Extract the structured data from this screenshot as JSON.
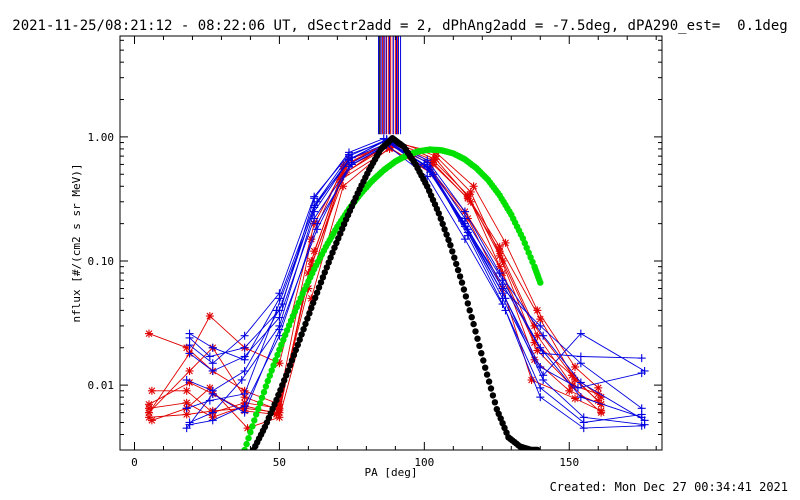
{
  "header": {
    "title": "2021-11-25/08:21:12 - 08:22:06 UT, dSectr2add = 2, dPhAng2add = -7.5deg, dPA290_est=  0.1deg"
  },
  "footer": {
    "created": "Created: Mon Dec 27 00:34:41 2021"
  },
  "chart_data": {
    "type": "line",
    "xlabel": "PA [deg]",
    "ylabel": "nflux [#/(cm2 s sr MeV)]",
    "xlim": [
      -5,
      182
    ],
    "ylim": [
      0.003,
      6.5
    ],
    "y_log": true,
    "x_ticks": [
      0,
      50,
      100,
      150
    ],
    "x_tick_labels": [
      "0",
      "50",
      "100",
      "150"
    ],
    "y_ticks": [
      0.01,
      0.1,
      1.0
    ],
    "y_tick_labels": [
      "0.01",
      "0.10",
      "1.00"
    ],
    "colors": {
      "red": "#e00000",
      "blue": "#0000e0",
      "green": "#00e000",
      "black": "#000000"
    },
    "series": [
      {
        "color": "red",
        "marker": "*",
        "x": [
          5,
          18,
          27,
          38,
          50,
          61,
          72,
          88,
          103,
          115,
          126,
          138,
          151,
          161
        ],
        "y": [
          0.0055,
          0.0058,
          0.0062,
          0.0065,
          0.006,
          0.1,
          0.55,
          0.85,
          0.6,
          0.32,
          0.12,
          0.03,
          0.012,
          0.008
        ]
      },
      {
        "color": "red",
        "marker": "*",
        "x": [
          5,
          18,
          27,
          38,
          50,
          61,
          72,
          88,
          103,
          115,
          126,
          138,
          151,
          161
        ],
        "y": [
          0.026,
          0.02,
          0.013,
          0.009,
          0.007,
          0.09,
          0.5,
          0.9,
          0.65,
          0.34,
          0.11,
          0.022,
          0.012,
          0.007
        ]
      },
      {
        "color": "red",
        "marker": "*",
        "x": [
          6,
          18,
          27,
          38,
          50,
          62,
          73,
          89,
          104,
          116,
          127,
          139,
          151,
          160
        ],
        "y": [
          0.009,
          0.009,
          0.006,
          0.0072,
          0.0065,
          0.12,
          0.6,
          0.95,
          0.7,
          0.36,
          0.1,
          0.025,
          0.01,
          0.0085
        ]
      },
      {
        "color": "red",
        "marker": "*",
        "x": [
          5,
          19,
          27,
          38,
          49,
          60,
          71,
          88,
          102,
          114,
          126,
          139,
          151,
          161
        ],
        "y": [
          0.007,
          0.0105,
          0.0085,
          0.0062,
          0.0058,
          0.06,
          0.45,
          0.8,
          0.55,
          0.25,
          0.09,
          0.019,
          0.0098,
          0.006
        ]
      },
      {
        "color": "red",
        "marker": "*",
        "x": [
          5,
          19,
          26,
          38,
          50,
          62,
          74,
          90,
          104,
          117,
          128,
          139,
          152,
          160
        ],
        "y": [
          0.006,
          0.018,
          0.036,
          0.02,
          0.015,
          0.2,
          0.66,
          0.9,
          0.75,
          0.4,
          0.14,
          0.04,
          0.014,
          0.0095
        ]
      },
      {
        "color": "red",
        "marker": "*",
        "x": [
          6,
          18,
          26,
          39,
          50,
          61,
          72,
          88,
          103,
          115,
          127,
          137,
          152,
          161
        ],
        "y": [
          0.0052,
          0.0065,
          0.0095,
          0.0045,
          0.0055,
          0.05,
          0.4,
          0.82,
          0.5,
          0.22,
          0.06,
          0.011,
          0.0078,
          0.0062
        ]
      },
      {
        "color": "red",
        "marker": "*",
        "x": [
          5,
          19,
          27,
          38,
          50,
          60,
          73,
          89,
          103,
          116,
          127,
          138,
          150,
          161
        ],
        "y": [
          0.006,
          0.013,
          0.02,
          0.008,
          0.0063,
          0.08,
          0.52,
          0.88,
          0.62,
          0.3,
          0.08,
          0.016,
          0.009,
          0.007
        ]
      },
      {
        "color": "red",
        "marker": "*",
        "x": [
          5,
          18,
          27,
          38,
          49,
          61,
          72,
          89,
          104,
          115,
          126,
          140,
          152,
          160
        ],
        "y": [
          0.0065,
          0.0072,
          0.0055,
          0.0068,
          0.0059,
          0.15,
          0.58,
          0.92,
          0.66,
          0.33,
          0.13,
          0.034,
          0.011,
          0.0075
        ]
      },
      {
        "color": "blue",
        "marker": "+",
        "x": [
          19,
          27,
          38,
          50,
          62,
          74,
          87,
          101,
          114,
          127,
          140,
          154,
          175
        ],
        "y": [
          0.026,
          0.02,
          0.016,
          0.05,
          0.28,
          0.7,
          0.95,
          0.62,
          0.22,
          0.07,
          0.02,
          0.008,
          0.0055
        ]
      },
      {
        "color": "blue",
        "marker": "+",
        "x": [
          19,
          27,
          38,
          50,
          62,
          74,
          87,
          101,
          114,
          127,
          140,
          154,
          175
        ],
        "y": [
          0.021,
          0.015,
          0.025,
          0.055,
          0.33,
          0.72,
          0.93,
          0.58,
          0.2,
          0.06,
          0.03,
          0.015,
          0.0065
        ]
      },
      {
        "color": "blue",
        "marker": "+",
        "x": [
          18,
          26,
          38,
          49,
          63,
          75,
          88,
          102,
          115,
          128,
          141,
          155,
          176
        ],
        "y": [
          0.0065,
          0.0075,
          0.0085,
          0.04,
          0.3,
          0.68,
          0.9,
          0.55,
          0.18,
          0.05,
          0.011,
          0.0055,
          0.0048
        ]
      },
      {
        "color": "blue",
        "marker": "+",
        "x": [
          19,
          27,
          37,
          50,
          62,
          74,
          87,
          101,
          114,
          126,
          141,
          154,
          176
        ],
        "y": [
          0.005,
          0.006,
          0.011,
          0.03,
          0.25,
          0.65,
          0.96,
          0.65,
          0.25,
          0.08,
          0.025,
          0.0105,
          0.0052
        ]
      },
      {
        "color": "blue",
        "marker": "+",
        "x": [
          19,
          27,
          38,
          50,
          63,
          75,
          88,
          103,
          115,
          127,
          140,
          155,
          175
        ],
        "y": [
          0.0048,
          0.0052,
          0.0068,
          0.025,
          0.2,
          0.6,
          0.88,
          0.5,
          0.16,
          0.045,
          0.0095,
          0.005,
          0.0058
        ]
      },
      {
        "color": "blue",
        "marker": "+",
        "x": [
          18,
          27,
          38,
          51,
          62,
          74,
          86,
          100,
          113,
          127,
          141,
          154,
          175
        ],
        "y": [
          0.011,
          0.009,
          0.013,
          0.045,
          0.32,
          0.75,
          0.97,
          0.6,
          0.21,
          0.065,
          0.018,
          0.017,
          0.0165
        ]
      },
      {
        "color": "blue",
        "marker": "+",
        "x": [
          19,
          26,
          38,
          50,
          62,
          74,
          87,
          101,
          114,
          127,
          140,
          153,
          175
        ],
        "y": [
          0.024,
          0.017,
          0.02,
          0.04,
          0.27,
          0.66,
          0.94,
          0.57,
          0.19,
          0.055,
          0.014,
          0.0095,
          0.0125
        ]
      },
      {
        "color": "blue",
        "marker": "+",
        "x": [
          19,
          27,
          38,
          50,
          62,
          75,
          88,
          102,
          115,
          127,
          141,
          154,
          176
        ],
        "y": [
          0.018,
          0.013,
          0.017,
          0.035,
          0.22,
          0.62,
          0.9,
          0.52,
          0.17,
          0.05,
          0.012,
          0.026,
          0.013
        ]
      },
      {
        "color": "blue",
        "marker": "+",
        "x": [
          18,
          27,
          38,
          50,
          63,
          74,
          87,
          101,
          114,
          128,
          140,
          155,
          175
        ],
        "y": [
          0.0045,
          0.0085,
          0.006,
          0.028,
          0.18,
          0.58,
          0.86,
          0.48,
          0.15,
          0.04,
          0.008,
          0.0045,
          0.0047
        ]
      }
    ],
    "fit_curves": [
      {
        "color": "green",
        "x": [
          38,
          42,
          46,
          50,
          54,
          58,
          62,
          66,
          70,
          74,
          78,
          82,
          86,
          90,
          94,
          98,
          102,
          106,
          110,
          114,
          118,
          122,
          126,
          130,
          134,
          138,
          140
        ],
        "y": [
          0.003,
          0.0058,
          0.0108,
          0.0193,
          0.0331,
          0.0545,
          0.086,
          0.13,
          0.189,
          0.262,
          0.348,
          0.443,
          0.54,
          0.633,
          0.711,
          0.766,
          0.791,
          0.78,
          0.736,
          0.66,
          0.559,
          0.45,
          0.338,
          0.236,
          0.152,
          0.09,
          0.067
        ]
      },
      {
        "color": "black",
        "x": [
          41,
          45,
          49,
          53,
          57,
          61,
          65,
          69,
          73,
          77,
          81,
          85,
          89,
          93,
          97,
          101,
          105,
          109,
          113,
          117,
          121,
          125,
          129,
          133,
          137,
          139
        ],
        "y": [
          0.003,
          0.0046,
          0.0076,
          0.0131,
          0.0232,
          0.0418,
          0.0739,
          0.128,
          0.216,
          0.351,
          0.545,
          0.798,
          0.976,
          0.83,
          0.6,
          0.398,
          0.242,
          0.134,
          0.067,
          0.031,
          0.0138,
          0.0064,
          0.0038,
          0.0032,
          0.003,
          0.003
        ]
      }
    ],
    "vertical_lines": [
      {
        "color": "red",
        "x": [
          85,
          85.6,
          86.2,
          87,
          87.7,
          88.4,
          89.2,
          90,
          90.7
        ]
      },
      {
        "color": "blue",
        "x": [
          84.2,
          85.1,
          86,
          86.8,
          88,
          89.3,
          90.4,
          91.1,
          91.8
        ]
      },
      {
        "color": "black",
        "x": [
          84.6
        ]
      }
    ]
  }
}
